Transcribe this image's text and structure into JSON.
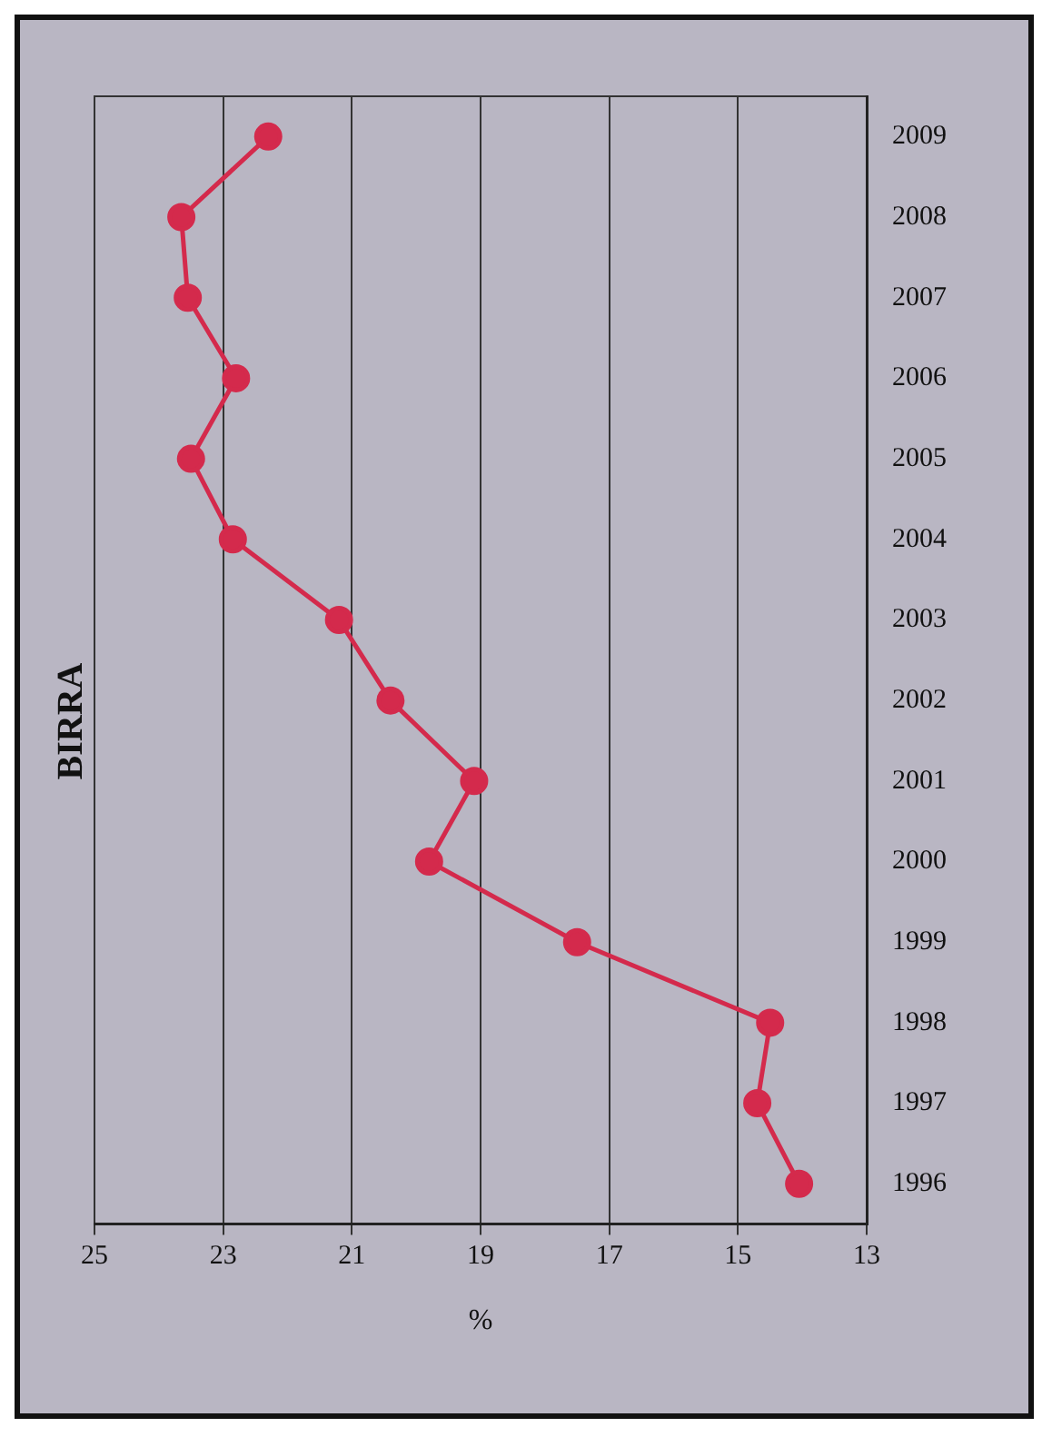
{
  "chart_data": {
    "type": "line",
    "title": "BIRRA",
    "xlabel": "%",
    "orientation": "horizontal",
    "categories": [
      "2009",
      "2008",
      "2007",
      "2006",
      "2005",
      "2004",
      "2003",
      "2002",
      "2001",
      "2000",
      "1999",
      "1998",
      "1997",
      "1996"
    ],
    "values": [
      22.3,
      23.65,
      23.55,
      22.8,
      23.5,
      22.85,
      21.2,
      20.4,
      19.1,
      19.8,
      17.5,
      14.5,
      14.7,
      14.05
    ],
    "color": "#d42a4c",
    "xlim": [
      25,
      13
    ],
    "xticks": [
      25,
      23,
      21,
      19,
      17,
      15,
      13
    ],
    "grid": "x",
    "marker": "circle",
    "legend": false
  }
}
